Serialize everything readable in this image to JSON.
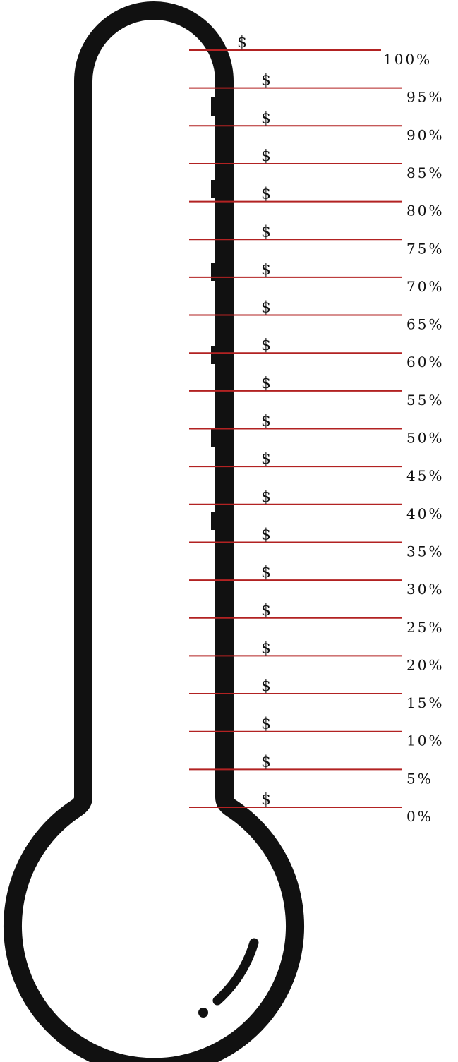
{
  "thermometer": {
    "outline_color": "#111111",
    "tick_color": "#b22222",
    "background": "#ffffff"
  },
  "scale": {
    "currency_symbol": "$",
    "levels": [
      {
        "percent": 100,
        "label": "100%"
      },
      {
        "percent": 95,
        "label": "95%"
      },
      {
        "percent": 90,
        "label": "90%"
      },
      {
        "percent": 85,
        "label": "85%"
      },
      {
        "percent": 80,
        "label": "80%"
      },
      {
        "percent": 75,
        "label": "75%"
      },
      {
        "percent": 70,
        "label": "70%"
      },
      {
        "percent": 65,
        "label": "65%"
      },
      {
        "percent": 60,
        "label": "60%"
      },
      {
        "percent": 55,
        "label": "55%"
      },
      {
        "percent": 50,
        "label": "50%"
      },
      {
        "percent": 45,
        "label": "45%"
      },
      {
        "percent": 40,
        "label": "40%"
      },
      {
        "percent": 35,
        "label": "35%"
      },
      {
        "percent": 30,
        "label": "30%"
      },
      {
        "percent": 25,
        "label": "25%"
      },
      {
        "percent": 20,
        "label": "20%"
      },
      {
        "percent": 15,
        "label": "15%"
      },
      {
        "percent": 10,
        "label": "10%"
      },
      {
        "percent": 5,
        "label": "5%"
      },
      {
        "percent": 0,
        "label": "0%"
      }
    ]
  }
}
